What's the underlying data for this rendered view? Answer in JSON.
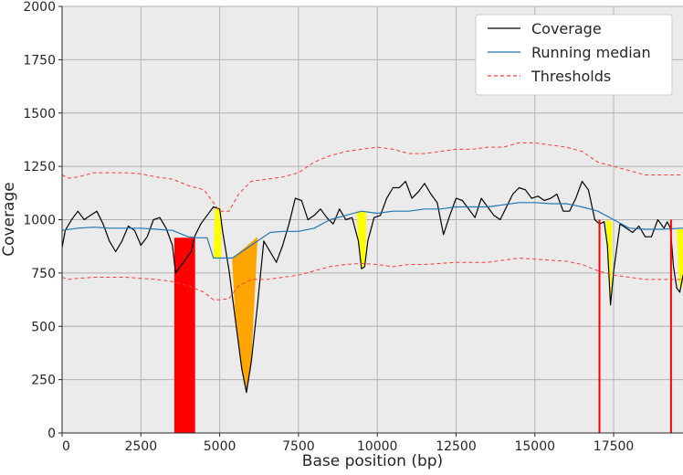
{
  "chart_data": {
    "type": "line",
    "title": "",
    "xlabel": "Base position (bp)",
    "ylabel": "Coverage",
    "xlim": [
      0,
      19700
    ],
    "ylim": [
      0,
      2000
    ],
    "xticks": [
      0,
      2500,
      5000,
      7500,
      10000,
      12500,
      15000,
      17500
    ],
    "yticks": [
      0,
      250,
      500,
      750,
      1000,
      1250,
      1500,
      1750,
      2000
    ],
    "grid": true,
    "legend_position": "top-right",
    "series": [
      {
        "name": "Coverage",
        "color": "#000000",
        "style": "solid",
        "x": [
          0,
          100,
          300,
          500,
          700,
          900,
          1100,
          1300,
          1500,
          1700,
          1900,
          2100,
          2300,
          2500,
          2700,
          2900,
          3100,
          3300,
          3500,
          3600,
          4100,
          4200,
          4400,
          4600,
          4800,
          5000,
          5100,
          5300,
          5500,
          5700,
          5850,
          6000,
          6200,
          6400,
          6600,
          6800,
          7000,
          7200,
          7400,
          7600,
          7800,
          8000,
          8200,
          8400,
          8600,
          8800,
          9000,
          9200,
          9400,
          9500,
          9600,
          9700,
          9900,
          10100,
          10300,
          10500,
          10700,
          10900,
          11100,
          11300,
          11500,
          11700,
          11900,
          12100,
          12300,
          12500,
          12700,
          12900,
          13100,
          13300,
          13500,
          13700,
          13900,
          14100,
          14300,
          14500,
          14700,
          14900,
          15100,
          15300,
          15500,
          15700,
          15900,
          16100,
          16300,
          16500,
          16700,
          16900,
          17050,
          17200,
          17300,
          17400,
          17500,
          17700,
          17900,
          18100,
          18300,
          18500,
          18700,
          18900,
          19100,
          19200,
          19300,
          19400,
          19500,
          19600,
          19700
        ],
        "values": [
          870,
          950,
          1000,
          1040,
          1000,
          1020,
          1040,
          980,
          900,
          850,
          900,
          970,
          950,
          880,
          920,
          1000,
          1010,
          960,
          880,
          750,
          850,
          920,
          980,
          1020,
          1060,
          1050,
          940,
          760,
          530,
          300,
          190,
          330,
          600,
          900,
          850,
          800,
          880,
          980,
          1100,
          1090,
          1000,
          1020,
          1050,
          1010,
          980,
          1050,
          1000,
          1010,
          900,
          770,
          780,
          900,
          1010,
          1020,
          1100,
          1150,
          1150,
          1180,
          1100,
          1130,
          1170,
          1120,
          1080,
          930,
          1020,
          1100,
          1090,
          1050,
          1010,
          1100,
          1060,
          1020,
          1000,
          1060,
          1120,
          1150,
          1140,
          1100,
          1110,
          1090,
          1100,
          1120,
          1040,
          1040,
          1100,
          1180,
          1140,
          1000,
          980,
          990,
          880,
          600,
          760,
          980,
          960,
          940,
          970,
          920,
          920,
          1000,
          960,
          990,
          960,
          780,
          680,
          660,
          740
        ]
      },
      {
        "name": "Running median",
        "color": "#1f77b4",
        "style": "solid",
        "x": [
          0,
          500,
          1000,
          1500,
          2000,
          2500,
          3000,
          3500,
          4000,
          4300,
          4600,
          4800,
          5000,
          5400,
          5800,
          6200,
          6600,
          7000,
          7500,
          8000,
          8500,
          9000,
          9500,
          10000,
          10500,
          11000,
          11500,
          12000,
          12500,
          13000,
          13500,
          14000,
          14500,
          15000,
          15500,
          16000,
          16500,
          17000,
          17500,
          18000,
          18500,
          19000,
          19700
        ],
        "values": [
          950,
          960,
          965,
          960,
          960,
          960,
          955,
          950,
          920,
          915,
          915,
          820,
          820,
          820,
          860,
          900,
          940,
          945,
          945,
          960,
          1000,
          1020,
          1040,
          1030,
          1040,
          1040,
          1050,
          1050,
          1060,
          1060,
          1060,
          1070,
          1080,
          1080,
          1075,
          1075,
          1060,
          1040,
          1000,
          960,
          955,
          955,
          960
        ]
      },
      {
        "name": "Thresholds",
        "color": "#ff3b3b",
        "style": "dashed",
        "x": [
          0,
          200,
          500,
          1000,
          1500,
          2000,
          2500,
          3000,
          3500,
          4000,
          4500,
          4800,
          5000,
          5300,
          5600,
          6000,
          6500,
          7000,
          7500,
          8000,
          8500,
          9000,
          9500,
          10000,
          10500,
          11000,
          11500,
          12000,
          12500,
          13000,
          13500,
          14000,
          14500,
          15000,
          15500,
          16000,
          16500,
          17000,
          17500,
          18000,
          18500,
          19000,
          19700
        ],
        "values": [
          1210,
          1195,
          1200,
          1220,
          1220,
          1220,
          1215,
          1200,
          1190,
          1160,
          1140,
          1080,
          1040,
          1040,
          1120,
          1180,
          1190,
          1200,
          1220,
          1270,
          1300,
          1320,
          1330,
          1340,
          1330,
          1310,
          1310,
          1320,
          1330,
          1330,
          1340,
          1340,
          1360,
          1360,
          1350,
          1340,
          1320,
          1270,
          1250,
          1230,
          1210,
          1210,
          1210
        ]
      },
      {
        "name": "",
        "color": "#ff3b3b",
        "style": "dashed",
        "x": [
          0,
          200,
          500,
          1000,
          1500,
          2000,
          2500,
          3000,
          3500,
          4000,
          4500,
          4800,
          5000,
          5300,
          5600,
          6000,
          6500,
          7000,
          7500,
          8000,
          8500,
          9000,
          9500,
          10000,
          10500,
          11000,
          11500,
          12000,
          12500,
          13000,
          13500,
          14000,
          14500,
          15000,
          15500,
          16000,
          16500,
          17000,
          17500,
          18000,
          18500,
          19000,
          19700
        ],
        "values": [
          730,
          720,
          725,
          730,
          730,
          730,
          725,
          720,
          710,
          690,
          660,
          625,
          625,
          630,
          690,
          720,
          720,
          730,
          740,
          760,
          780,
          790,
          795,
          790,
          780,
          790,
          790,
          795,
          800,
          800,
          800,
          810,
          820,
          815,
          810,
          805,
          790,
          760,
          740,
          730,
          720,
          720,
          720
        ]
      }
    ],
    "regions": [
      {
        "color": "#ff0000",
        "x": [
          3560,
          3560,
          4220,
          4220
        ],
        "y": [
          0,
          915,
          915,
          0
        ]
      },
      {
        "color": "#ffff00",
        "x": [
          4800,
          4850,
          5000,
          5050,
          5050,
          4800
        ],
        "y": [
          820,
          1050,
          1060,
          1040,
          820,
          820
        ]
      },
      {
        "color": "#ffa500",
        "x": [
          5400,
          5500,
          5700,
          5850,
          6000,
          6200,
          6200,
          5400
        ],
        "y": [
          800,
          530,
          300,
          190,
          330,
          900,
          920,
          820
        ]
      },
      {
        "color": "#ffff00",
        "x": [
          9350,
          9400,
          9500,
          9600,
          9650,
          9650,
          9350
        ],
        "y": [
          1040,
          900,
          770,
          780,
          900,
          1040,
          1040
        ]
      },
      {
        "color": "#ffff00",
        "x": [
          17250,
          17300,
          17400,
          17450,
          17450,
          17250
        ],
        "y": [
          1000,
          880,
          580,
          760,
          990,
          1000
        ]
      },
      {
        "color": "#ffff00",
        "x": [
          19500,
          19550,
          19600,
          19700,
          19700,
          19500
        ],
        "y": [
          955,
          780,
          660,
          700,
          955,
          955
        ]
      }
    ],
    "vlines": [
      {
        "color": "#ff0000",
        "x": 17050,
        "y": [
          0,
          1000
        ]
      },
      {
        "color": "#ff0000",
        "x": 19320,
        "y": [
          0,
          1000
        ]
      }
    ]
  }
}
